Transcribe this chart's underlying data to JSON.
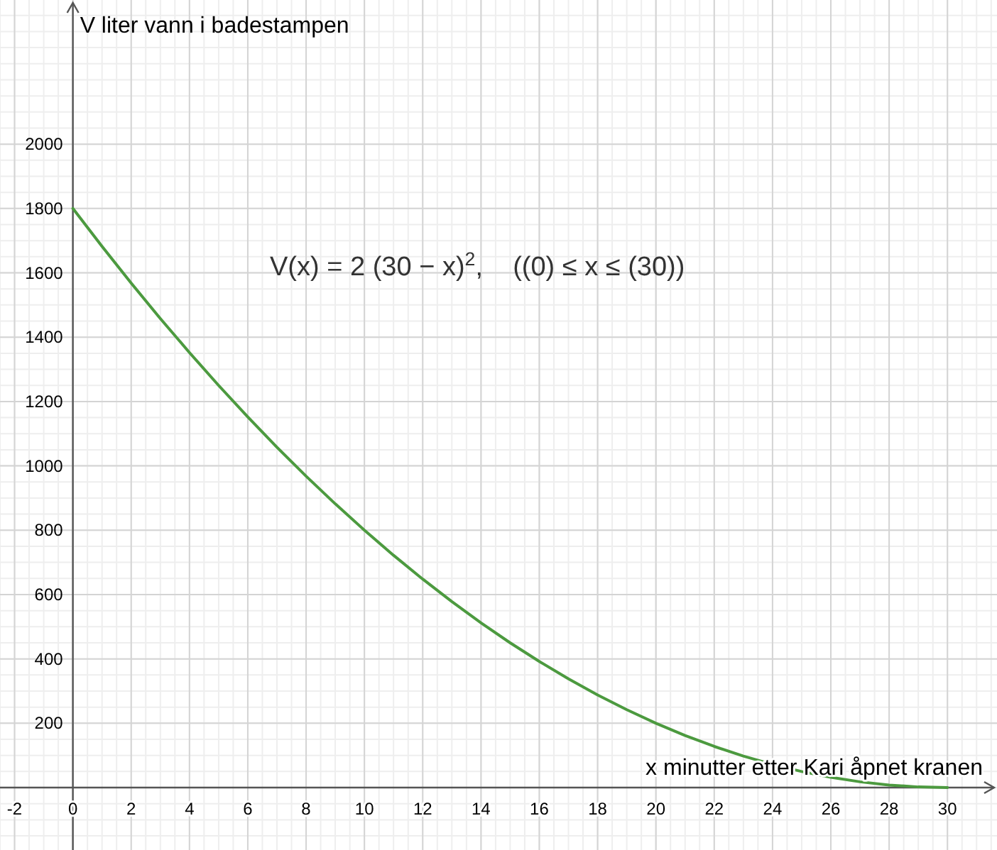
{
  "chart_data": {
    "type": "line",
    "xlabel": "x minutter etter Kari åpnet kranen",
    "ylabel": "V liter vann i badestampen",
    "annotations": [
      "V(x) = 2 (30 − x)$^{2}$,    ((0) ≤ x ≤ (30))"
    ],
    "x": [
      0,
      1,
      2,
      3,
      4,
      5,
      6,
      7,
      8,
      9,
      10,
      11,
      12,
      13,
      14,
      15,
      16,
      17,
      18,
      19,
      20,
      21,
      22,
      23,
      24,
      25,
      26,
      27,
      28,
      29,
      30
    ],
    "series": [
      {
        "color": "#4c9a3f",
        "values": [
          1800,
          1682,
          1568,
          1458,
          1352,
          1250,
          1152,
          1058,
          968,
          882,
          800,
          722,
          648,
          578,
          512,
          450,
          392,
          338,
          288,
          242,
          200,
          162,
          128,
          98,
          72,
          50,
          32,
          18,
          8,
          2,
          0
        ]
      }
    ],
    "xlim": [
      -2.5,
      31.7
    ],
    "ylim": [
      -194,
      2448
    ],
    "xticks": [
      -2,
      0,
      2,
      4,
      6,
      8,
      10,
      12,
      14,
      16,
      18,
      20,
      22,
      24,
      26,
      28,
      30
    ],
    "yticks": [
      200,
      400,
      600,
      800,
      1000,
      1200,
      1400,
      1600,
      1800,
      2000
    ],
    "grid": true,
    "marker": "none",
    "line_style": "solid"
  }
}
